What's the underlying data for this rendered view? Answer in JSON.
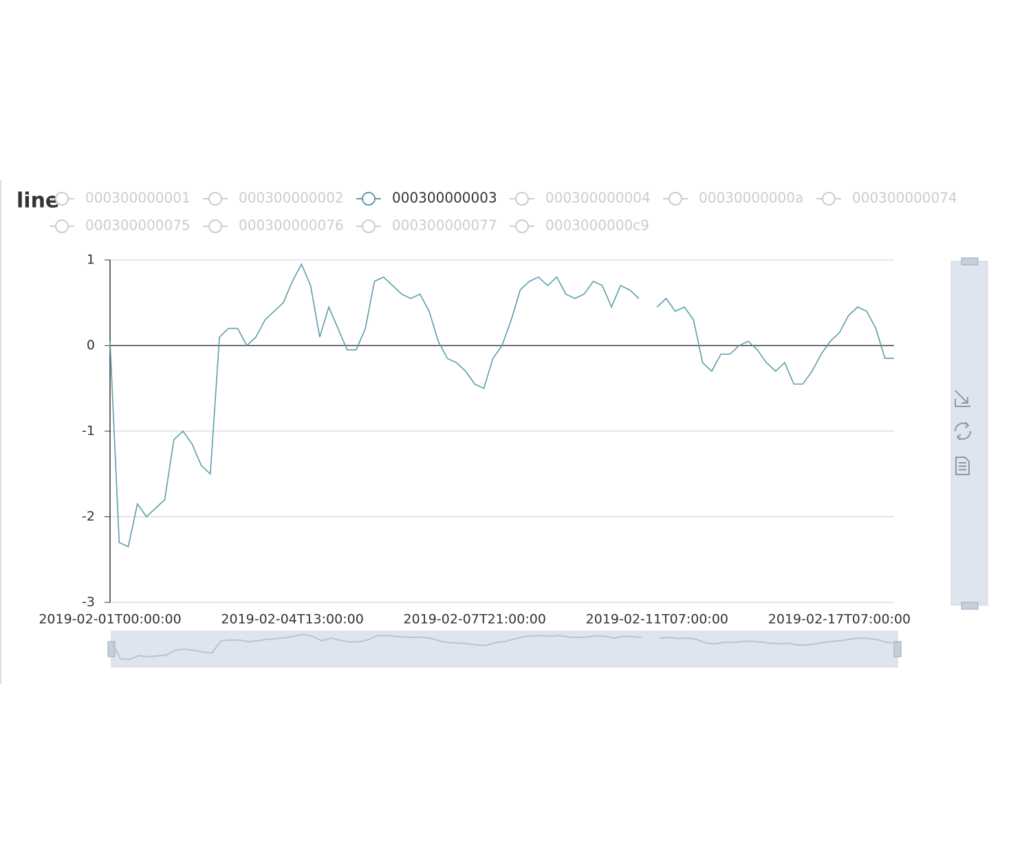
{
  "chart_data": {
    "type": "line",
    "title": "line",
    "categories": [
      "2019-02-01T00:00:00",
      null,
      null,
      null,
      null,
      null,
      null,
      null,
      null,
      null,
      null,
      null,
      null,
      null,
      null,
      null,
      null,
      null,
      null,
      null,
      "2019-02-04T13:00:00",
      null,
      null,
      null,
      null,
      null,
      null,
      null,
      null,
      null,
      null,
      null,
      null,
      null,
      null,
      null,
      null,
      null,
      null,
      null,
      "2019-02-07T21:00:00",
      null,
      null,
      null,
      null,
      null,
      null,
      null,
      null,
      null,
      null,
      null,
      null,
      null,
      null,
      null,
      null,
      null,
      null,
      null,
      "2019-02-11T07:00:00",
      null,
      null,
      null,
      null,
      null,
      null,
      null,
      null,
      null,
      null,
      null,
      null,
      null,
      null,
      null,
      null,
      null,
      null,
      null,
      "2019-02-17T07:00:00",
      null,
      null,
      null,
      null,
      null,
      null
    ],
    "series": [
      {
        "name": "000300000001",
        "visible": false
      },
      {
        "name": "000300000002",
        "visible": false
      },
      {
        "name": "000300000003",
        "visible": true,
        "color": "#5a9ea8",
        "values": [
          0.05,
          -2.3,
          -2.35,
          -1.85,
          -2.0,
          -1.9,
          -1.8,
          -1.1,
          -1.0,
          -1.15,
          -1.4,
          -1.5,
          0.1,
          0.2,
          0.2,
          0.0,
          0.1,
          0.3,
          0.4,
          0.5,
          0.75,
          0.95,
          0.7,
          0.1,
          0.45,
          0.2,
          -0.05,
          -0.05,
          0.2,
          0.75,
          0.8,
          0.7,
          0.6,
          0.55,
          0.6,
          0.4,
          0.05,
          -0.15,
          -0.2,
          -0.3,
          -0.45,
          -0.5,
          -0.15,
          0.0,
          0.3,
          0.65,
          0.75,
          0.8,
          0.7,
          0.8,
          0.6,
          0.55,
          0.6,
          0.75,
          0.7,
          0.45,
          0.7,
          0.65,
          0.55,
          null,
          0.45,
          0.55,
          0.4,
          0.45,
          0.3,
          -0.2,
          -0.3,
          -0.1,
          -0.1,
          0.0,
          0.05,
          -0.05,
          -0.2,
          -0.3,
          -0.2,
          -0.45,
          -0.45,
          -0.3,
          -0.1,
          0.05,
          0.15,
          0.35,
          0.45,
          0.4,
          0.2,
          -0.15,
          -0.15
        ]
      },
      {
        "name": "000300000004",
        "visible": false
      },
      {
        "name": "00030000000a",
        "visible": false
      },
      {
        "name": "000300000074",
        "visible": false
      },
      {
        "name": "000300000075",
        "visible": false
      },
      {
        "name": "000300000076",
        "visible": false
      },
      {
        "name": "000300000077",
        "visible": false
      },
      {
        "name": "0003000000c9",
        "visible": false
      }
    ],
    "ylim": [
      -3,
      1
    ],
    "yticks": [
      1,
      0,
      -1,
      -2,
      -3
    ],
    "grid": true
  }
}
